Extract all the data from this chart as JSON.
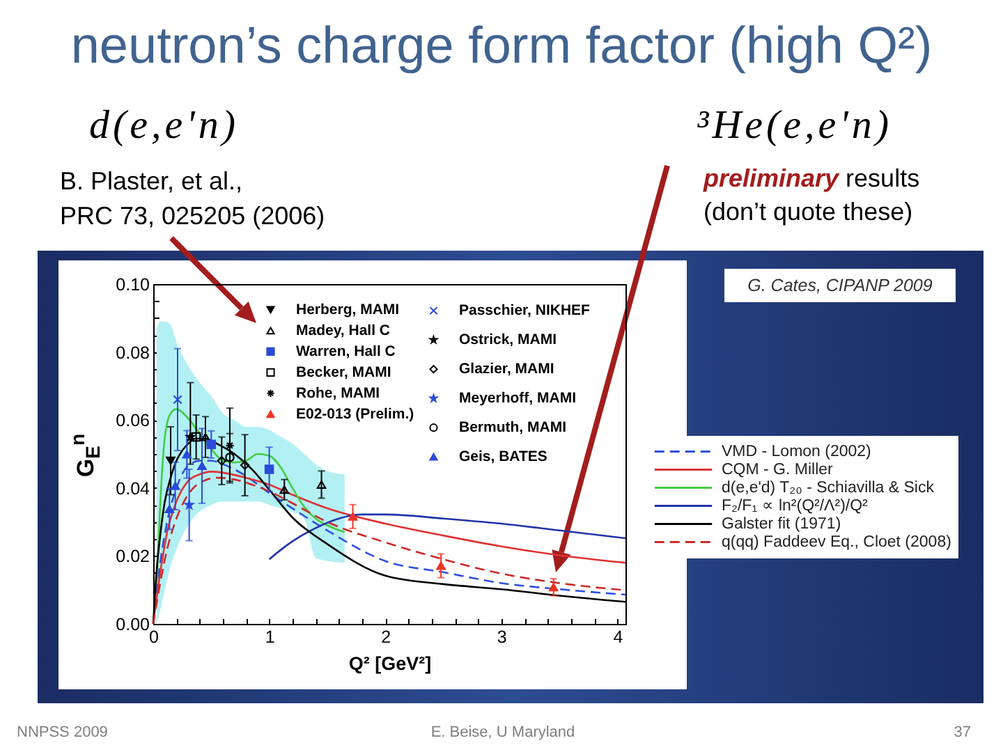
{
  "chart_data": {
    "type": "scatter",
    "title": "neutron’s charge form factor (high Q²)",
    "xlabel": "Q² [GeV²]",
    "ylabel": "G$_{E}$$^{n}$",
    "xlim": [
      0,
      4.07
    ],
    "ylim": [
      0,
      0.1
    ],
    "xticks": [
      0,
      {
        "value": 0.2,
        "label": null
      },
      {
        "value": 0.4,
        "label": null
      },
      {
        "value": 0.6,
        "label": null
      },
      {
        "value": 0.8,
        "label": null
      },
      1,
      {
        "value": 1.2,
        "label": null
      },
      {
        "value": 1.4,
        "label": null
      },
      {
        "value": 1.6,
        "label": null
      },
      {
        "value": 1.8,
        "label": null
      },
      2,
      {
        "value": 2.2,
        "label": null
      },
      {
        "value": 2.4,
        "label": null
      },
      {
        "value": 2.6,
        "label": null
      },
      {
        "value": 2.8,
        "label": null
      },
      3,
      {
        "value": 3.2,
        "label": null
      },
      {
        "value": 3.4,
        "label": null
      },
      {
        "value": 3.6,
        "label": null
      },
      {
        "value": 3.8,
        "label": null
      },
      4
    ],
    "yticks": [
      {
        "value": 0,
        "label": "0.00"
      },
      {
        "value": 0.005,
        "label": null
      },
      {
        "value": 0.01,
        "label": null
      },
      {
        "value": 0.015,
        "label": null
      },
      0.02,
      {
        "value": 0.025,
        "label": null
      },
      {
        "value": 0.03,
        "label": null
      },
      {
        "value": 0.035,
        "label": null
      },
      0.04,
      {
        "value": 0.045,
        "label": null
      },
      {
        "value": 0.05,
        "label": null
      },
      {
        "value": 0.055,
        "label": null
      },
      0.06,
      {
        "value": 0.065,
        "label": null
      },
      {
        "value": 0.07,
        "label": null
      },
      {
        "value": 0.075,
        "label": null
      },
      0.08,
      {
        "value": 0.085,
        "label": null
      },
      {
        "value": 0.09,
        "label": null
      },
      {
        "value": 0.095,
        "label": null
      },
      {
        "value": 0.1,
        "label": "0.10"
      }
    ],
    "legend": "top",
    "series": [
      {
        "name": "Herberg, MAMI",
        "marker": "triangle",
        "color": "#000000",
        "x": [
          0.15
        ],
        "values": [
          0.048
        ],
        "errors": [
          0.01
        ]
      },
      {
        "name": "Madey, Hall C",
        "marker": "triangle",
        "color": "#000000",
        "x": [
          0.45,
          1.13,
          1.45
        ],
        "values": [
          0.055,
          0.0395,
          0.041
        ],
        "errors": [
          0.006,
          0.003,
          0.004
        ]
      },
      {
        "name": "Warren, Hall C",
        "marker": "square",
        "color": "#2a4bd7",
        "x": [
          0.5,
          1.0
        ],
        "values": [
          0.0528,
          0.0455
        ],
        "errors": [
          0.004,
          0.0065
        ]
      },
      {
        "name": "Becker, MAMI",
        "marker": "square",
        "color": "#000000",
        "x": [
          0.37
        ],
        "values": [
          0.055
        ],
        "errors": [
          0.0065
        ]
      },
      {
        "name": "Rohe, MAMI",
        "marker": "cross",
        "color": "#000000",
        "x": [
          0.66
        ],
        "values": [
          0.0525
        ],
        "errors": [
          0.011
        ]
      },
      {
        "name": "E02-013 (Prelim.)",
        "marker": "triangle",
        "color": "#ee3322",
        "x": [
          1.72,
          2.48,
          3.45
        ],
        "values": [
          0.0316,
          0.0171,
          0.0108
        ],
        "errors": [
          0.0035,
          0.0035,
          0.0025
        ]
      },
      {
        "name": "Passchier, NIKHEF",
        "marker": "cross",
        "color": "#2a4bd7",
        "x": [
          0.21
        ],
        "values": [
          0.066
        ],
        "errors": [
          0.015
        ]
      },
      {
        "name": "Ostrick, MAMI",
        "marker": "star",
        "color": "#000000",
        "x": [
          0.32
        ],
        "values": [
          0.055
        ],
        "errors": [
          [
            0.047,
            0.071
          ]
        ]
      },
      {
        "name": "Glazier, MAMI",
        "marker": "diamond",
        "color": "#000000",
        "x": [
          0.59,
          0.79
        ],
        "values": [
          0.048,
          0.0467
        ],
        "errors": [
          0.007,
          0.009
        ]
      },
      {
        "name": "Meyerhoff, MAMI",
        "marker": "star",
        "color": "#2a4bd7",
        "x": [
          0.31
        ],
        "values": [
          0.035
        ],
        "errors": [
          0.0105
        ]
      },
      {
        "name": "Bermuth, MAMI",
        "marker": "circle",
        "color": "#000000",
        "x": [
          0.66
        ],
        "values": [
          0.049
        ],
        "errors": [
          0.007
        ]
      },
      {
        "name": "Geis, BATES",
        "marker": "triangle",
        "color": "#2a4bd7",
        "x": [
          0.14,
          0.19,
          0.29,
          0.42
        ],
        "values": [
          0.0338,
          0.0406,
          0.0499,
          0.0465
        ],
        "errors": [
          0.006,
          0.007,
          0.007,
          0.011
        ]
      },
      {
        "name": "VMD - Lomon (2002)",
        "type": "line",
        "line_style": "dashed",
        "color": "#3050dd",
        "x": [
          0,
          0.06,
          0.12,
          0.2,
          0.3,
          0.4,
          0.5,
          0.6,
          0.8,
          1.0,
          1.2,
          1.5,
          2.0,
          2.5,
          3.0,
          3.5,
          4.07
        ],
        "values": [
          0,
          0.018,
          0.03,
          0.04,
          0.0465,
          0.048,
          0.048,
          0.047,
          0.0435,
          0.0385,
          0.034,
          0.0275,
          0.0185,
          0.0152,
          0.012,
          0.0102,
          0.0086
        ]
      },
      {
        "name": "CQM - G. Miller",
        "type": "line",
        "line_style": "solid",
        "color": "#dd3333",
        "x": [
          0,
          0.06,
          0.12,
          0.2,
          0.3,
          0.4,
          0.5,
          0.6,
          0.8,
          1.0,
          1.2,
          1.5,
          2.0,
          2.5,
          3.0,
          3.5,
          4.07
        ],
        "values": [
          0,
          0.015,
          0.027,
          0.036,
          0.042,
          0.044,
          0.0448,
          0.0445,
          0.043,
          0.041,
          0.038,
          0.034,
          0.0295,
          0.026,
          0.0228,
          0.0202,
          0.018
        ]
      },
      {
        "name": "d(e,e'd) T₂₀ - Schiavilla & Sick",
        "type": "line",
        "line_style": "solid",
        "color": "#44cc44",
        "x": [
          0.03,
          0.06,
          0.1,
          0.15,
          0.2,
          0.3,
          0.4,
          0.5,
          0.6,
          0.7,
          0.8,
          0.9,
          1.0,
          1.1,
          1.2,
          1.3,
          1.4,
          1.5,
          1.65
        ],
        "values": [
          0.012,
          0.035,
          0.055,
          0.062,
          0.0632,
          0.0605,
          0.056,
          0.0515,
          0.048,
          0.0475,
          0.048,
          0.05,
          0.0495,
          0.046,
          0.04,
          0.0345,
          0.031,
          0.029,
          0.027
        ],
        "lower": [
          0,
          0.004,
          0.01,
          0.017,
          0.022,
          0.029,
          0.033,
          0.035,
          0.036,
          0.036,
          0.036,
          0.036,
          0.035,
          0.034,
          0.033,
          0.031,
          0.0195,
          0.0185,
          0.018
        ],
        "upper": [
          0.087,
          0.089,
          0.089,
          0.088,
          0.083,
          0.076,
          0.071,
          0.067,
          0.062,
          0.06,
          0.058,
          0.058,
          0.057,
          0.055,
          0.053,
          0.05,
          0.047,
          0.045,
          0.044
        ]
      },
      {
        "name": "F₂/F₁ ∝ ln²(Q²/Λ²)/Q²",
        "type": "line",
        "line_style": "solid",
        "color": "#2233aa",
        "x": [
          1.0,
          1.1,
          1.2,
          1.4,
          1.6,
          1.8,
          2.0,
          2.5,
          3.0,
          3.5,
          4.07
        ],
        "values": [
          0.019,
          0.0218,
          0.0243,
          0.0282,
          0.031,
          0.0322,
          0.0322,
          0.031,
          0.0295,
          0.0275,
          0.0252
        ]
      },
      {
        "name": "Galster fit (1971)",
        "type": "line",
        "line_style": "solid",
        "color": "#000000",
        "x": [
          0,
          0.03,
          0.06,
          0.1,
          0.15,
          0.2,
          0.25,
          0.3,
          0.36,
          0.45,
          0.55,
          0.7,
          0.85,
          1.0,
          1.2,
          1.5,
          2.0,
          2.5,
          3.0,
          3.5,
          4.07
        ],
        "values": [
          0,
          0.016,
          0.026,
          0.036,
          0.043,
          0.048,
          0.051,
          0.053,
          0.0545,
          0.0545,
          0.053,
          0.05,
          0.0455,
          0.0395,
          0.0313,
          0.0235,
          0.0142,
          0.0117,
          0.0102,
          0.0083,
          0.0065
        ]
      },
      {
        "name": "q(qq) Faddeev Eq., Cloet (2008)",
        "type": "line",
        "line_style": "dashed",
        "color": "#cc2a2a",
        "x": [
          0,
          0.06,
          0.12,
          0.2,
          0.3,
          0.4,
          0.55,
          0.7,
          0.85,
          1.0,
          1.2,
          1.5,
          2.0,
          2.5,
          3.0,
          3.5,
          4.07
        ],
        "values": [
          0,
          0.012,
          0.022,
          0.031,
          0.038,
          0.0415,
          0.043,
          0.0425,
          0.041,
          0.039,
          0.0355,
          0.03,
          0.024,
          0.019,
          0.0148,
          0.012,
          0.0099
        ]
      }
    ],
    "annotations": [
      "d(e,e'n)",
      "³He(e,e'n)",
      "B. Plaster, et al.,",
      "PRC 73, 025205 (2006)",
      "preliminary results",
      "(don’t quote these)",
      "G. Cates, CIPANP 2009",
      "NNPSS 2009",
      "E. Beise, U Maryland",
      "37"
    ]
  }
}
